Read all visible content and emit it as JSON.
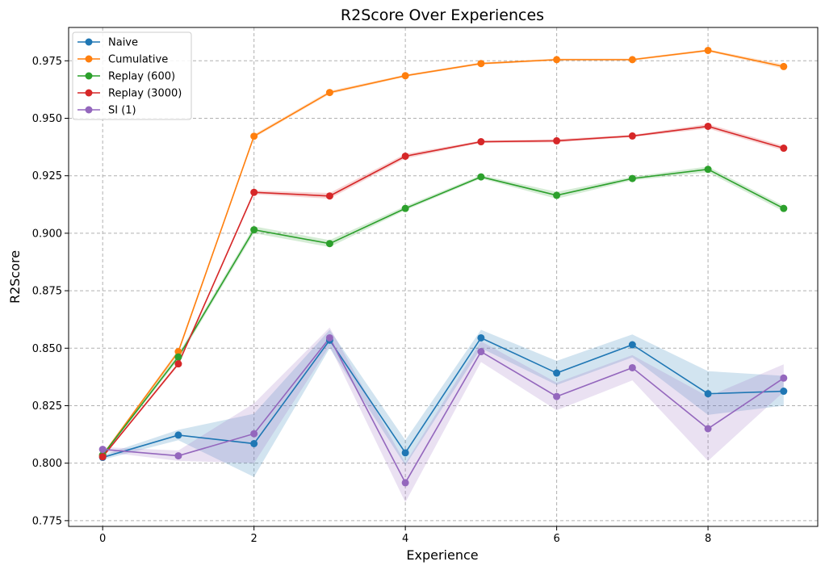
{
  "chart_data": {
    "type": "line",
    "title": "R2Score Over Experiences",
    "xlabel": "Experience",
    "ylabel": "R2Score",
    "x": [
      0,
      1,
      2,
      3,
      4,
      5,
      6,
      7,
      8,
      9
    ],
    "xlim": [
      -0.45,
      9.45
    ],
    "ylim": [
      0.7725,
      0.9895
    ],
    "xticks": [
      0,
      2,
      4,
      6,
      8
    ],
    "xtick_labels": [
      "0",
      "2",
      "4",
      "6",
      "8"
    ],
    "yticks": [
      0.775,
      0.8,
      0.825,
      0.85,
      0.875,
      0.9,
      0.925,
      0.95,
      0.975
    ],
    "ytick_labels": [
      "0.775",
      "0.800",
      "0.825",
      "0.850",
      "0.875",
      "0.900",
      "0.925",
      "0.950",
      "0.975"
    ],
    "grid": true,
    "legend_position": "top-left",
    "series": [
      {
        "name": "Naive",
        "color": "#1f77b4",
        "values": [
          0.8025,
          0.8122,
          0.8085,
          0.8535,
          0.8045,
          0.8545,
          0.8392,
          0.8515,
          0.8302,
          0.8313
        ],
        "lower": [
          0.8015,
          0.81,
          0.794,
          0.85,
          0.799,
          0.85,
          0.834,
          0.846,
          0.821,
          0.825
        ],
        "upper": [
          0.8035,
          0.8145,
          0.8215,
          0.858,
          0.81,
          0.858,
          0.8445,
          0.856,
          0.84,
          0.838
        ]
      },
      {
        "name": "Cumulative",
        "color": "#ff7f0e",
        "values": [
          0.8035,
          0.8485,
          0.9422,
          0.9612,
          0.9685,
          0.9738,
          0.9755,
          0.9755,
          0.9795,
          0.9725
        ],
        "lower": [
          0.803,
          0.8475,
          0.9415,
          0.9605,
          0.968,
          0.9733,
          0.975,
          0.975,
          0.979,
          0.9715
        ],
        "upper": [
          0.804,
          0.8495,
          0.943,
          0.962,
          0.969,
          0.9743,
          0.976,
          0.976,
          0.98,
          0.9735
        ]
      },
      {
        "name": "Replay (600)",
        "color": "#2ca02c",
        "values": [
          0.8035,
          0.8462,
          0.9015,
          0.8955,
          0.9108,
          0.9245,
          0.9165,
          0.9238,
          0.9278,
          0.9108
        ],
        "lower": [
          0.803,
          0.845,
          0.9,
          0.894,
          0.91,
          0.9238,
          0.915,
          0.923,
          0.9265,
          0.9095
        ],
        "upper": [
          0.804,
          0.8475,
          0.903,
          0.897,
          0.9118,
          0.9253,
          0.918,
          0.9246,
          0.929,
          0.912
        ]
      },
      {
        "name": "Replay (3000)",
        "color": "#d62728",
        "values": [
          0.8028,
          0.8432,
          0.9178,
          0.9162,
          0.9335,
          0.9398,
          0.9402,
          0.9423,
          0.9465,
          0.937
        ],
        "lower": [
          0.8023,
          0.8425,
          0.917,
          0.915,
          0.9325,
          0.9393,
          0.9395,
          0.9418,
          0.9455,
          0.936
        ],
        "upper": [
          0.8033,
          0.844,
          0.9186,
          0.9175,
          0.9345,
          0.9403,
          0.9409,
          0.9428,
          0.9475,
          0.938
        ]
      },
      {
        "name": "SI (1)",
        "color": "#9467bd",
        "values": [
          0.806,
          0.8032,
          0.8128,
          0.8545,
          0.7915,
          0.8485,
          0.829,
          0.8415,
          0.815,
          0.837
        ],
        "lower": [
          0.805,
          0.801,
          0.8,
          0.851,
          0.783,
          0.844,
          0.823,
          0.836,
          0.801,
          0.831
        ],
        "upper": [
          0.807,
          0.8055,
          0.826,
          0.859,
          0.8,
          0.853,
          0.835,
          0.847,
          0.829,
          0.843
        ]
      }
    ]
  }
}
